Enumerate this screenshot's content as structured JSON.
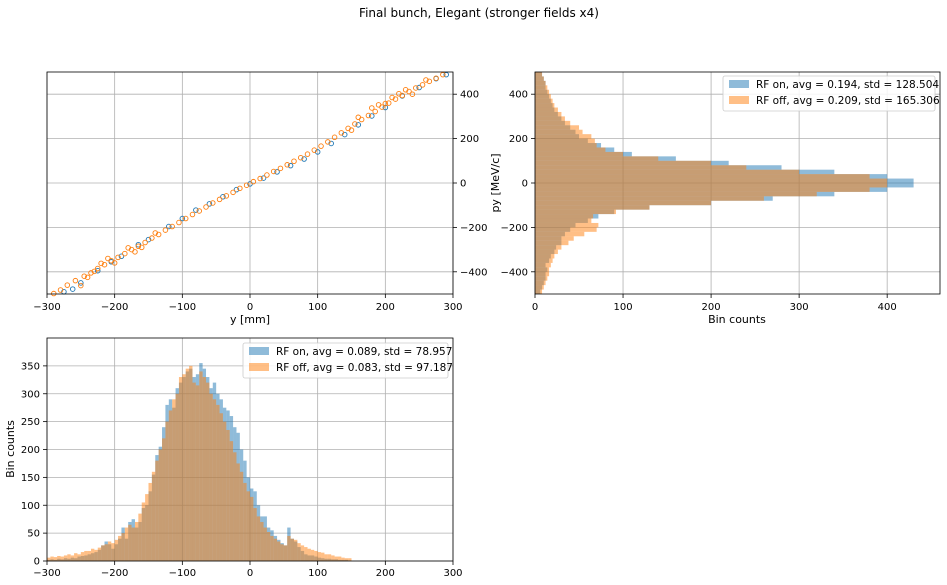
{
  "figure": {
    "suptitle": "Final bunch, Elegant (stronger fields x4)"
  },
  "colors": {
    "rf_on": "#1f77b4",
    "rf_off": "#ff7f0e",
    "grid": "#b0b0b0"
  },
  "chart_data": [
    {
      "id": "phase-space",
      "type": "scatter",
      "xlabel": "y [mm]",
      "ylabel": "",
      "xlim": [
        -300,
        300
      ],
      "ylim": [
        -500,
        500
      ],
      "xticks": [
        -300,
        -200,
        -100,
        0,
        100,
        200,
        300
      ],
      "yticks": [
        -400,
        -200,
        0,
        200,
        400
      ],
      "yaxis_side": "right",
      "grid": true,
      "marker": "hollow-circle",
      "series": [
        {
          "color_key": "rf_on",
          "points": [
            [
              -275,
              -490
            ],
            [
              -262,
              -478
            ],
            [
              -250,
              -450
            ],
            [
              -225,
              -395
            ],
            [
              -205,
              -355
            ],
            [
              -190,
              -330
            ],
            [
              -165,
              -278
            ],
            [
              -150,
              -255
            ],
            [
              -120,
              -196
            ],
            [
              -100,
              -160
            ],
            [
              -80,
              -122
            ],
            [
              -60,
              -94
            ],
            [
              -40,
              -62
            ],
            [
              -20,
              -30
            ],
            [
              0,
              -4
            ],
            [
              20,
              22
            ],
            [
              40,
              50
            ],
            [
              60,
              78
            ],
            [
              80,
              108
            ],
            [
              100,
              140
            ],
            [
              120,
              178
            ],
            [
              140,
              218
            ],
            [
              160,
              262
            ],
            [
              180,
              302
            ],
            [
              200,
              340
            ],
            [
              225,
              392
            ],
            [
              250,
              430
            ],
            [
              275,
              470
            ],
            [
              290,
              488
            ]
          ]
        },
        {
          "color_key": "rf_off",
          "points": [
            [
              -290,
              -498
            ],
            [
              -280,
              -482
            ],
            [
              -270,
              -460
            ],
            [
              -258,
              -440
            ],
            [
              -245,
              -420
            ],
            [
              -235,
              -405
            ],
            [
              -225,
              -385
            ],
            [
              -215,
              -368
            ],
            [
              -205,
              -350
            ],
            [
              -195,
              -335
            ],
            [
              -185,
              -318
            ],
            [
              -175,
              -300
            ],
            [
              -165,
              -285
            ],
            [
              -155,
              -268
            ],
            [
              -145,
              -248
            ],
            [
              -135,
              -232
            ],
            [
              -125,
              -212
            ],
            [
              -115,
              -196
            ],
            [
              -105,
              -178
            ],
            [
              -95,
              -160
            ],
            [
              -85,
              -142
            ],
            [
              -75,
              -126
            ],
            [
              -65,
              -108
            ],
            [
              -55,
              -90
            ],
            [
              -45,
              -74
            ],
            [
              -35,
              -58
            ],
            [
              -25,
              -42
            ],
            [
              -15,
              -24
            ],
            [
              -5,
              -10
            ],
            [
              5,
              6
            ],
            [
              15,
              20
            ],
            [
              25,
              36
            ],
            [
              35,
              52
            ],
            [
              45,
              66
            ],
            [
              55,
              82
            ],
            [
              65,
              98
            ],
            [
              75,
              114
            ],
            [
              85,
              130
            ],
            [
              95,
              148
            ],
            [
              105,
              166
            ],
            [
              115,
              185
            ],
            [
              125,
              206
            ],
            [
              135,
              226
            ],
            [
              145,
              246
            ],
            [
              155,
              266
            ],
            [
              165,
              286
            ],
            [
              175,
              304
            ],
            [
              185,
              322
            ],
            [
              195,
              342
            ],
            [
              205,
              360
            ],
            [
              215,
              378
            ],
            [
              225,
              394
            ],
            [
              235,
              412
            ],
            [
              245,
              428
            ],
            [
              255,
              442
            ],
            [
              265,
              458
            ],
            [
              275,
              472
            ],
            [
              285,
              488
            ],
            [
              -240,
              -425
            ],
            [
              -220,
              -362
            ],
            [
              -200,
              -360
            ],
            [
              -180,
              -292
            ],
            [
              -160,
              -290
            ],
            [
              -140,
              -225
            ],
            [
              180,
              338
            ],
            [
              200,
              358
            ],
            [
              220,
              402
            ],
            [
              240,
              400
            ],
            [
              260,
              464
            ],
            [
              190,
              352
            ],
            [
              210,
              385
            ],
            [
              230,
              420
            ],
            [
              -210,
              -340
            ],
            [
              -230,
              -398
            ],
            [
              -250,
              -462
            ],
            [
              -170,
              -310
            ],
            [
              150,
              238
            ],
            [
              160,
              296
            ]
          ]
        }
      ]
    },
    {
      "id": "py-histogram",
      "type": "bar",
      "orientation": "horizontal",
      "xlabel": "Bin counts",
      "ylabel": "py [MeV/c]",
      "xlim": [
        0,
        460
      ],
      "ylim": [
        -500,
        500
      ],
      "xticks": [
        0,
        100,
        200,
        300,
        400
      ],
      "yticks": [
        -400,
        -200,
        0,
        200,
        400
      ],
      "grid": true,
      "legend_position": "upper-right",
      "bin_edges": [
        -500,
        -480,
        -460,
        -440,
        -420,
        -400,
        -380,
        -360,
        -340,
        -320,
        -300,
        -280,
        -260,
        -240,
        -220,
        -200,
        -180,
        -160,
        -140,
        -120,
        -100,
        -80,
        -60,
        -40,
        -20,
        0,
        20,
        40,
        60,
        80,
        100,
        120,
        140,
        160,
        180,
        200,
        220,
        240,
        260,
        280,
        300,
        320,
        340,
        360,
        380,
        400,
        420,
        440,
        460,
        480,
        500
      ],
      "series": [
        {
          "name": "RF on, avg = 0.194, std = 128.504",
          "color_key": "rf_on",
          "alpha": 0.5,
          "values": [
            6,
            8,
            10,
            12,
            12,
            14,
            12,
            16,
            18,
            22,
            24,
            30,
            30,
            34,
            40,
            46,
            60,
            72,
            90,
            130,
            200,
            270,
            340,
            400,
            430,
            430,
            400,
            340,
            280,
            220,
            160,
            110,
            90,
            75,
            60,
            50,
            46,
            40,
            34,
            30,
            26,
            22,
            20,
            18,
            16,
            14,
            12,
            12,
            10,
            8
          ]
        },
        {
          "name": "RF off, avg = 0.209, std = 165.306",
          "color_key": "rf_off",
          "alpha": 0.5,
          "values": [
            8,
            10,
            12,
            14,
            16,
            16,
            18,
            20,
            22,
            26,
            30,
            38,
            44,
            56,
            70,
            72,
            64,
            66,
            92,
            130,
            200,
            260,
            320,
            380,
            400,
            400,
            380,
            300,
            240,
            200,
            140,
            100,
            80,
            70,
            68,
            64,
            54,
            50,
            40,
            34,
            30,
            26,
            22,
            20,
            18,
            16,
            14,
            12,
            10,
            8
          ]
        }
      ]
    },
    {
      "id": "y-histogram",
      "type": "bar",
      "orientation": "vertical",
      "xlabel": "",
      "ylabel": "Bin counts",
      "xlim": [
        -300,
        300
      ],
      "ylim": [
        0,
        400
      ],
      "xticks": [
        -300,
        -200,
        -100,
        0,
        100,
        200,
        300
      ],
      "yticks": [
        0,
        50,
        100,
        150,
        200,
        250,
        300,
        350
      ],
      "grid": true,
      "legend_position": "upper-right",
      "bin_start": -300,
      "bin_width": 5,
      "series": [
        {
          "name": "RF on, avg = 0.089, std = 78.957",
          "color_key": "rf_on",
          "alpha": 0.5,
          "values": [
            2,
            3,
            2,
            4,
            3,
            5,
            4,
            6,
            5,
            8,
            9,
            10,
            12,
            14,
            16,
            20,
            28,
            35,
            30,
            22,
            30,
            40,
            60,
            40,
            70,
            75,
            60,
            70,
            95,
            100,
            125,
            155,
            190,
            205,
            240,
            280,
            290,
            275,
            310,
            320,
            330,
            340,
            345,
            330,
            335,
            355,
            345,
            330,
            310,
            320,
            300,
            290,
            275,
            270,
            260,
            240,
            230,
            200,
            180,
            150,
            130,
            125,
            100,
            80,
            80,
            60,
            55,
            45,
            38,
            32,
            28,
            60,
            40,
            35,
            25,
            18,
            12,
            10,
            10,
            8,
            6,
            5,
            4,
            4,
            3,
            3,
            2,
            2,
            2,
            1
          ]
        },
        {
          "name": "RF off, avg = 0.083, std = 97.187",
          "color_key": "rf_off",
          "alpha": 0.5,
          "values": [
            6,
            8,
            7,
            9,
            8,
            10,
            12,
            10,
            14,
            12,
            16,
            18,
            18,
            22,
            20,
            24,
            28,
            30,
            35,
            32,
            38,
            45,
            50,
            60,
            65,
            60,
            70,
            85,
            105,
            120,
            140,
            160,
            180,
            200,
            220,
            250,
            270,
            290,
            300,
            330,
            335,
            345,
            350,
            320,
            315,
            340,
            330,
            320,
            300,
            290,
            280,
            265,
            250,
            235,
            215,
            195,
            175,
            160,
            140,
            125,
            115,
            95,
            80,
            70,
            60,
            52,
            45,
            40,
            35,
            30,
            28,
            45,
            40,
            38,
            32,
            28,
            25,
            22,
            20,
            18,
            16,
            15,
            12,
            12,
            10,
            8,
            8,
            6,
            5,
            5
          ]
        }
      ]
    }
  ]
}
